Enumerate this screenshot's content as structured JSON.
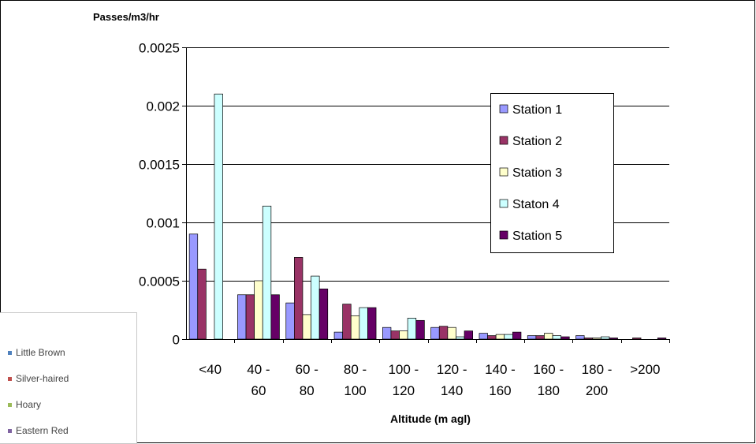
{
  "chart_data": {
    "type": "bar",
    "ylabel": "Passes/m3/hr",
    "xlabel": "Altitude (m agl)",
    "ylim": [
      0,
      0.0025
    ],
    "yticks": [
      "0",
      "0.0005",
      "0.001",
      "0.0015",
      "0.002",
      "0.0025"
    ],
    "grid": true,
    "legend_position": "top-right",
    "categories": [
      [
        "<40"
      ],
      [
        "40 -",
        "60"
      ],
      [
        "60 -",
        "80"
      ],
      [
        "80 -",
        "100"
      ],
      [
        "100 -",
        "120"
      ],
      [
        "120 -",
        "140"
      ],
      [
        "140 -",
        "160"
      ],
      [
        "160 -",
        "180"
      ],
      [
        "180 -",
        "200"
      ],
      [
        ">200"
      ]
    ],
    "series": [
      {
        "name": "Station 1",
        "color": "#9999ff",
        "values": [
          0.0009,
          0.00038,
          0.00031,
          6e-05,
          0.0001,
          0.0001,
          5e-05,
          3e-05,
          3e-05,
          0
        ]
      },
      {
        "name": "Station 2",
        "color": "#993366",
        "values": [
          0.0006,
          0.00038,
          0.0007,
          0.0003,
          7e-05,
          0.00011,
          3e-05,
          3e-05,
          1e-05,
          1e-05
        ]
      },
      {
        "name": "Station 3",
        "color": "#ffffcc",
        "values": [
          0,
          0.0005,
          0.00021,
          0.0002,
          7e-05,
          0.0001,
          4e-05,
          5e-05,
          1e-05,
          0
        ]
      },
      {
        "name": "Staton 4",
        "color": "#ccffff",
        "values": [
          0.0021,
          0.00114,
          0.00054,
          0.00027,
          0.00018,
          2e-05,
          4e-05,
          3e-05,
          2e-05,
          0
        ]
      },
      {
        "name": "Station 5",
        "color": "#660066",
        "values": [
          0,
          0.00038,
          0.00043,
          0.00027,
          0.00016,
          7e-05,
          6e-05,
          2e-05,
          1e-05,
          1e-05
        ]
      }
    ]
  },
  "overlay_legend": {
    "items": [
      {
        "label": "Little Brown",
        "color": "#4f81bd"
      },
      {
        "label": "Silver-haired",
        "color": "#c0504d"
      },
      {
        "label": "Hoary",
        "color": "#9bbb59"
      },
      {
        "label": "Eastern Red",
        "color": "#8064a2"
      }
    ]
  }
}
